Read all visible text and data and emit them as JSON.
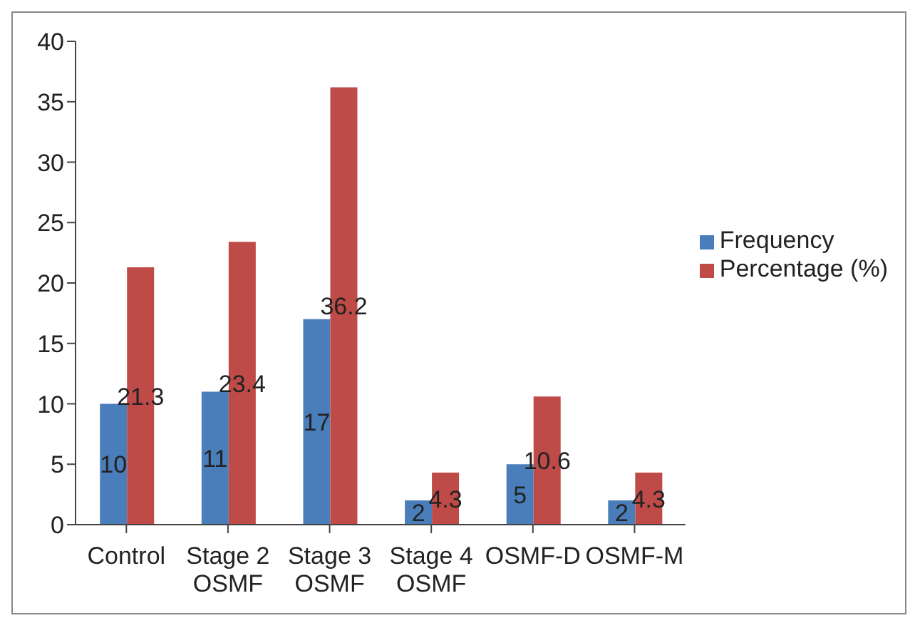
{
  "chart_data": {
    "type": "bar",
    "categories": [
      "Control",
      "Stage 2\nOSMF",
      "Stage 3\nOSMF",
      "Stage 4\nOSMF",
      "OSMF-D",
      "OSMF-M"
    ],
    "series": [
      {
        "name": "Frequency",
        "color": "#4a7ebb",
        "values": [
          10,
          11,
          17,
          2,
          5,
          2
        ]
      },
      {
        "name": "Percentage (%)",
        "color": "#be4b48",
        "values": [
          21.3,
          23.4,
          36.2,
          4.3,
          10.6,
          4.3
        ]
      }
    ],
    "ylim": [
      0,
      40
    ],
    "yticks": [
      0,
      5,
      10,
      15,
      20,
      25,
      30,
      35,
      40
    ],
    "grid": false,
    "legend": "right",
    "data_labels": true
  }
}
